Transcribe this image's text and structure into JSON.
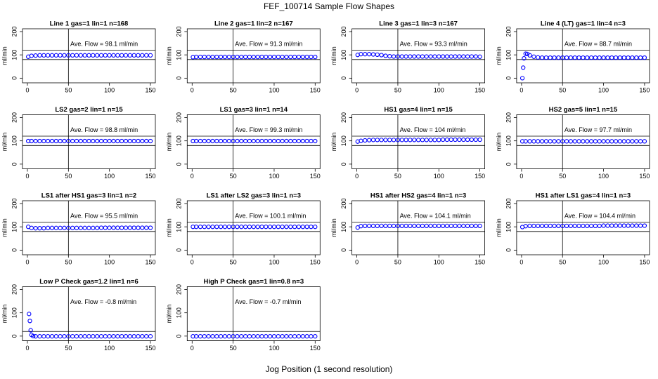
{
  "title": "FEF_100714  Sample Flow Shapes",
  "xlabel": "Jog Position (1 second resolution)",
  "chart_data": [
    {
      "type": "scatter",
      "title": "Line 1 gas=1 lin=1 n=168",
      "ylabel": "ml/min",
      "annotation": "Ave. Flow =  98.1  ml/min",
      "color": "#0000ff",
      "xlim": [
        -6,
        156
      ],
      "ylim": [
        -20,
        212
      ],
      "xticks": [
        0,
        50,
        100,
        150
      ],
      "yticks": [
        0,
        100,
        200
      ],
      "vline": 50,
      "hlines": [
        80,
        120
      ],
      "x": [
        1,
        5,
        10,
        15,
        20,
        25,
        30,
        35,
        40,
        45,
        50,
        55,
        60,
        65,
        70,
        75,
        80,
        85,
        90,
        95,
        100,
        105,
        110,
        115,
        120,
        125,
        130,
        135,
        140,
        145,
        150
      ],
      "values": [
        92,
        96,
        97,
        98,
        98,
        98,
        98,
        98,
        98,
        98,
        98,
        98,
        98,
        98,
        98,
        98,
        98,
        98,
        98,
        98,
        98,
        98,
        98,
        98,
        98,
        98,
        98,
        98,
        98,
        98,
        98
      ]
    },
    {
      "type": "scatter",
      "title": "Line 2 gas=1 lin=2 n=167",
      "ylabel": "ml/min",
      "annotation": "Ave. Flow =  91.3  ml/min",
      "color": "#0000ff",
      "xlim": [
        -6,
        156
      ],
      "ylim": [
        -20,
        212
      ],
      "xticks": [
        0,
        50,
        100,
        150
      ],
      "yticks": [
        0,
        100,
        200
      ],
      "vline": 50,
      "hlines": [
        80,
        120
      ],
      "x": [
        1,
        5,
        10,
        15,
        20,
        25,
        30,
        35,
        40,
        45,
        50,
        55,
        60,
        65,
        70,
        75,
        80,
        85,
        90,
        95,
        100,
        105,
        110,
        115,
        120,
        125,
        130,
        135,
        140,
        145,
        150
      ],
      "values": [
        90,
        91,
        91,
        91,
        91,
        91,
        91,
        91,
        91,
        91,
        91,
        91,
        91,
        91,
        91,
        91,
        91,
        91,
        91,
        91,
        91,
        91,
        91,
        91,
        91,
        91,
        91,
        91,
        91,
        91,
        91
      ]
    },
    {
      "type": "scatter",
      "title": "Line 3 gas=1 lin=3 n=167",
      "ylabel": "ml/min",
      "annotation": "Ave. Flow =  93.3  ml/min",
      "color": "#0000ff",
      "xlim": [
        -6,
        156
      ],
      "ylim": [
        -20,
        212
      ],
      "xticks": [
        0,
        50,
        100,
        150
      ],
      "yticks": [
        0,
        100,
        200
      ],
      "vline": 50,
      "hlines": [
        80,
        120
      ],
      "x": [
        1,
        5,
        10,
        15,
        20,
        25,
        30,
        35,
        40,
        45,
        50,
        55,
        60,
        65,
        70,
        75,
        80,
        85,
        90,
        95,
        100,
        105,
        110,
        115,
        120,
        125,
        130,
        135,
        140,
        145,
        150
      ],
      "values": [
        100,
        103,
        103,
        103,
        102,
        101,
        99,
        96,
        94,
        93,
        93,
        93,
        93,
        93,
        93,
        93,
        93,
        93,
        93,
        93,
        93,
        93,
        93,
        93,
        93,
        93,
        93,
        93,
        93,
        93,
        92
      ]
    },
    {
      "type": "scatter",
      "title": "Line 4 (LT) gas=1 lin=4 n=3",
      "ylabel": "ml/min",
      "annotation": "Ave. Flow =  88.7  ml/min",
      "color": "#0000ff",
      "xlim": [
        -6,
        156
      ],
      "ylim": [
        -20,
        212
      ],
      "xticks": [
        0,
        50,
        100,
        150
      ],
      "yticks": [
        0,
        100,
        200
      ],
      "vline": 50,
      "hlines": [
        80,
        120
      ],
      "x": [
        1,
        2,
        3,
        5,
        7,
        10,
        15,
        20,
        25,
        30,
        35,
        40,
        45,
        50,
        55,
        60,
        65,
        70,
        75,
        80,
        85,
        90,
        95,
        100,
        105,
        110,
        115,
        120,
        125,
        130,
        135,
        140,
        145,
        150
      ],
      "values": [
        0,
        45,
        85,
        105,
        104,
        98,
        92,
        89,
        88,
        88,
        88,
        88,
        88,
        88,
        88,
        88,
        88,
        88,
        88,
        88,
        88,
        88,
        88,
        88,
        88,
        88,
        88,
        88,
        88,
        88,
        88,
        88,
        88,
        88
      ]
    },
    {
      "type": "scatter",
      "title": "LS2 gas=2 lin=1 n=15",
      "ylabel": "ml/min",
      "annotation": "Ave. Flow =  98.8  ml/min",
      "color": "#0000ff",
      "xlim": [
        -6,
        156
      ],
      "ylim": [
        -20,
        212
      ],
      "xticks": [
        0,
        50,
        100,
        150
      ],
      "yticks": [
        0,
        100,
        200
      ],
      "vline": 50,
      "hlines": [
        80,
        120
      ],
      "x": [
        1,
        5,
        10,
        15,
        20,
        25,
        30,
        35,
        40,
        45,
        50,
        55,
        60,
        65,
        70,
        75,
        80,
        85,
        90,
        95,
        100,
        105,
        110,
        115,
        120,
        125,
        130,
        135,
        140,
        145,
        150
      ],
      "values": [
        99,
        99,
        99,
        99,
        99,
        99,
        99,
        99,
        99,
        99,
        99,
        99,
        99,
        99,
        99,
        99,
        99,
        99,
        99,
        99,
        99,
        99,
        99,
        99,
        99,
        99,
        99,
        99,
        99,
        99,
        99
      ]
    },
    {
      "type": "scatter",
      "title": "LS1 gas=3 lin=1 n=14",
      "ylabel": "ml/min",
      "annotation": "Ave. Flow =  99.3  ml/min",
      "color": "#0000ff",
      "xlim": [
        -6,
        156
      ],
      "ylim": [
        -20,
        212
      ],
      "xticks": [
        0,
        50,
        100,
        150
      ],
      "yticks": [
        0,
        100,
        200
      ],
      "vline": 50,
      "hlines": [
        80,
        120
      ],
      "x": [
        1,
        5,
        10,
        15,
        20,
        25,
        30,
        35,
        40,
        45,
        50,
        55,
        60,
        65,
        70,
        75,
        80,
        85,
        90,
        95,
        100,
        105,
        110,
        115,
        120,
        125,
        130,
        135,
        140,
        145,
        150
      ],
      "values": [
        99,
        99,
        99,
        99,
        99,
        99,
        99,
        99,
        99,
        99,
        99,
        99,
        99,
        99,
        99,
        99,
        99,
        99,
        99,
        99,
        99,
        99,
        99,
        99,
        99,
        99,
        99,
        99,
        99,
        99,
        99
      ]
    },
    {
      "type": "scatter",
      "title": "HS1 gas=4 lin=1 n=15",
      "ylabel": "ml/min",
      "annotation": "Ave. Flow =  104  ml/min",
      "color": "#0000ff",
      "xlim": [
        -6,
        156
      ],
      "ylim": [
        -20,
        212
      ],
      "xticks": [
        0,
        50,
        100,
        150
      ],
      "yticks": [
        0,
        100,
        200
      ],
      "vline": 50,
      "hlines": [
        80,
        120
      ],
      "x": [
        1,
        5,
        10,
        15,
        20,
        25,
        30,
        35,
        40,
        45,
        50,
        55,
        60,
        65,
        70,
        75,
        80,
        85,
        90,
        95,
        100,
        105,
        110,
        115,
        120,
        125,
        130,
        135,
        140,
        145,
        150
      ],
      "values": [
        97,
        100,
        102,
        103,
        104,
        104,
        104,
        104,
        104,
        104,
        104,
        104,
        104,
        104,
        104,
        104,
        104,
        104,
        104,
        104,
        104,
        105,
        105,
        105,
        105,
        105,
        105,
        105,
        105,
        105,
        105
      ]
    },
    {
      "type": "scatter",
      "title": "HS2 gas=5 lin=1 n=15",
      "ylabel": "ml/min",
      "annotation": "Ave. Flow =  97.7  ml/min",
      "color": "#0000ff",
      "xlim": [
        -6,
        156
      ],
      "ylim": [
        -20,
        212
      ],
      "xticks": [
        0,
        50,
        100,
        150
      ],
      "yticks": [
        0,
        100,
        200
      ],
      "vline": 50,
      "hlines": [
        80,
        120
      ],
      "x": [
        1,
        5,
        10,
        15,
        20,
        25,
        30,
        35,
        40,
        45,
        50,
        55,
        60,
        65,
        70,
        75,
        80,
        85,
        90,
        95,
        100,
        105,
        110,
        115,
        120,
        125,
        130,
        135,
        140,
        145,
        150
      ],
      "values": [
        98,
        98,
        98,
        98,
        98,
        98,
        98,
        98,
        98,
        98,
        98,
        98,
        98,
        98,
        98,
        98,
        98,
        98,
        98,
        98,
        98,
        98,
        98,
        98,
        98,
        98,
        98,
        98,
        98,
        98,
        98
      ]
    },
    {
      "type": "scatter",
      "title": "LS1 after HS1 gas=3 lin=1 n=2",
      "ylabel": "ml/min",
      "annotation": "Ave. Flow =  95.5  ml/min",
      "color": "#0000ff",
      "xlim": [
        -6,
        156
      ],
      "ylim": [
        -20,
        212
      ],
      "xticks": [
        0,
        50,
        100,
        150
      ],
      "yticks": [
        0,
        100,
        200
      ],
      "vline": 50,
      "hlines": [
        80,
        120
      ],
      "x": [
        1,
        5,
        10,
        15,
        20,
        25,
        30,
        35,
        40,
        45,
        50,
        55,
        60,
        65,
        70,
        75,
        80,
        85,
        90,
        95,
        100,
        105,
        110,
        115,
        120,
        125,
        130,
        135,
        140,
        145,
        150
      ],
      "values": [
        100,
        95,
        94,
        94,
        94,
        95,
        95,
        95,
        95,
        95,
        95,
        95,
        95,
        95,
        95,
        95,
        95,
        95,
        96,
        96,
        96,
        96,
        96,
        96,
        96,
        96,
        96,
        96,
        96,
        96,
        96
      ]
    },
    {
      "type": "scatter",
      "title": "LS1 after LS2 gas=3 lin=1 n=3",
      "ylabel": "ml/min",
      "annotation": "Ave. Flow =  100.1  ml/min",
      "color": "#0000ff",
      "xlim": [
        -6,
        156
      ],
      "ylim": [
        -20,
        212
      ],
      "xticks": [
        0,
        50,
        100,
        150
      ],
      "yticks": [
        0,
        100,
        200
      ],
      "vline": 50,
      "hlines": [
        80,
        120
      ],
      "x": [
        1,
        5,
        10,
        15,
        20,
        25,
        30,
        35,
        40,
        45,
        50,
        55,
        60,
        65,
        70,
        75,
        80,
        85,
        90,
        95,
        100,
        105,
        110,
        115,
        120,
        125,
        130,
        135,
        140,
        145,
        150
      ],
      "values": [
        100,
        100,
        100,
        100,
        100,
        100,
        100,
        100,
        100,
        100,
        100,
        100,
        100,
        100,
        100,
        100,
        100,
        100,
        100,
        100,
        100,
        100,
        100,
        100,
        100,
        100,
        100,
        100,
        100,
        100,
        100
      ]
    },
    {
      "type": "scatter",
      "title": "HS1 after HS2 gas=4 lin=1 n=3",
      "ylabel": "ml/min",
      "annotation": "Ave. Flow =  104.1  ml/min",
      "color": "#0000ff",
      "xlim": [
        -6,
        156
      ],
      "ylim": [
        -20,
        212
      ],
      "xticks": [
        0,
        50,
        100,
        150
      ],
      "yticks": [
        0,
        100,
        200
      ],
      "vline": 50,
      "hlines": [
        80,
        120
      ],
      "x": [
        1,
        5,
        10,
        15,
        20,
        25,
        30,
        35,
        40,
        45,
        50,
        55,
        60,
        65,
        70,
        75,
        80,
        85,
        90,
        95,
        100,
        105,
        110,
        115,
        120,
        125,
        130,
        135,
        140,
        145,
        150
      ],
      "values": [
        97,
        103,
        104,
        104,
        104,
        104,
        104,
        104,
        104,
        104,
        104,
        104,
        104,
        104,
        104,
        104,
        104,
        104,
        104,
        104,
        104,
        104,
        104,
        104,
        104,
        104,
        104,
        104,
        104,
        104,
        104
      ]
    },
    {
      "type": "scatter",
      "title": "HS1 after LS1 gas=4 lin=1 n=3",
      "ylabel": "ml/min",
      "annotation": "Ave. Flow =  104.4  ml/min",
      "color": "#0000ff",
      "xlim": [
        -6,
        156
      ],
      "ylim": [
        -20,
        212
      ],
      "xticks": [
        0,
        50,
        100,
        150
      ],
      "yticks": [
        0,
        100,
        200
      ],
      "vline": 50,
      "hlines": [
        80,
        120
      ],
      "x": [
        1,
        5,
        10,
        15,
        20,
        25,
        30,
        35,
        40,
        45,
        50,
        55,
        60,
        65,
        70,
        75,
        80,
        85,
        90,
        95,
        100,
        105,
        110,
        115,
        120,
        125,
        130,
        135,
        140,
        145,
        150
      ],
      "values": [
        99,
        103,
        104,
        104,
        104,
        104,
        104,
        104,
        104,
        104,
        104,
        104,
        104,
        104,
        104,
        104,
        104,
        104,
        104,
        104,
        105,
        105,
        105,
        105,
        105,
        105,
        105,
        105,
        105,
        105,
        105
      ]
    },
    {
      "type": "scatter",
      "title": "Low P Check gas=1.2 lin=1 n=6",
      "ylabel": "ml/min",
      "annotation": "Ave. Flow =  -0.8  ml/min",
      "color": "#0000ff",
      "xlim": [
        -6,
        156
      ],
      "ylim": [
        -20,
        212
      ],
      "xticks": [
        0,
        50,
        100,
        150
      ],
      "yticks": [
        0,
        100,
        200
      ],
      "vline": 50,
      "hlines": [
        -20,
        20
      ],
      "x": [
        2,
        3,
        4,
        5,
        7,
        10,
        15,
        20,
        25,
        30,
        35,
        40,
        45,
        50,
        55,
        60,
        65,
        70,
        75,
        80,
        85,
        90,
        95,
        100,
        105,
        110,
        115,
        120,
        125,
        130,
        135,
        140,
        145,
        150
      ],
      "values": [
        95,
        65,
        25,
        5,
        0,
        -1,
        -1,
        -1,
        -1,
        -1,
        -1,
        -1,
        -1,
        -1,
        -1,
        -1,
        -1,
        -1,
        -1,
        -1,
        -1,
        -1,
        -1,
        -1,
        -1,
        -1,
        -1,
        -1,
        -1,
        -1,
        -1,
        -1,
        -1,
        -1
      ]
    },
    {
      "type": "scatter",
      "title": "High P Check gas=1 lin=0.8 n=3",
      "ylabel": "ml/min",
      "annotation": "Ave. Flow =  -0.7  ml/min",
      "color": "#0000ff",
      "xlim": [
        -6,
        156
      ],
      "ylim": [
        -20,
        212
      ],
      "xticks": [
        0,
        50,
        100,
        150
      ],
      "yticks": [
        0,
        100,
        200
      ],
      "vline": 50,
      "hlines": [
        -20,
        20
      ],
      "x": [
        1,
        5,
        10,
        15,
        20,
        25,
        30,
        35,
        40,
        45,
        50,
        55,
        60,
        65,
        70,
        75,
        80,
        85,
        90,
        95,
        100,
        105,
        110,
        115,
        120,
        125,
        130,
        135,
        140,
        145,
        150
      ],
      "values": [
        -1,
        -1,
        -1,
        -1,
        -1,
        -1,
        -1,
        -1,
        -1,
        -1,
        -1,
        -1,
        -1,
        -1,
        -1,
        -1,
        -1,
        -1,
        -1,
        -1,
        -1,
        -1,
        -1,
        -1,
        -1,
        -1,
        -1,
        -1,
        -1,
        -1,
        -1
      ]
    }
  ]
}
